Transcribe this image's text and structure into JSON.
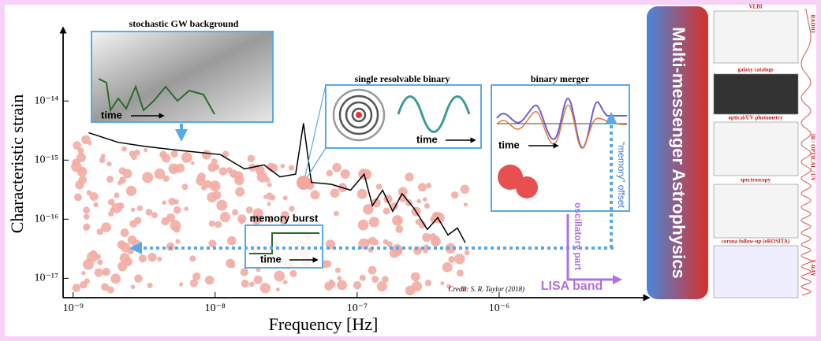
{
  "chart_data": {
    "type": "line",
    "x_label": "Frequency [Hz]",
    "y_label": "Characteristic strain",
    "xscale": "log",
    "yscale": "log",
    "xlim": [
      8.5e-10,
      1e-05
    ],
    "ylim": [
      4.7e-18,
      1.5e-13
    ],
    "xticks": [
      {
        "value": 1e-09,
        "label": "10⁻⁹"
      },
      {
        "value": 1e-08,
        "label": "10⁻⁸"
      },
      {
        "value": 1e-07,
        "label": "10⁻⁷"
      },
      {
        "value": 1e-06,
        "label": "10⁻⁶"
      }
    ],
    "yticks": [
      {
        "value": 1e-17,
        "label": "10⁻¹⁷"
      },
      {
        "value": 1e-16,
        "label": "10⁻¹⁶"
      },
      {
        "value": 1e-15,
        "label": "10⁻¹⁵"
      },
      {
        "value": 1e-14,
        "label": "10⁻¹⁴"
      }
    ],
    "series": [
      {
        "color": "#000000",
        "x": [
          1.29e-09,
          2.07e-09,
          3.24e-09,
          5.8e-09,
          1.09e-08,
          1.61e-08,
          2.21e-08,
          2.86e-08,
          3.69e-08,
          4.19e-08,
          4.76e-08,
          6.56e-08,
          9e-08,
          1.12e-07,
          1.28e-07,
          1.51e-07,
          1.78e-07,
          2.07e-07,
          2.51e-07,
          3.12e-07,
          3.69e-07,
          4.36e-07,
          5.08e-07,
          5.77e-07
        ],
        "values": [
          2.9e-15,
          2e-15,
          1.7e-15,
          1.45e-15,
          1.24e-15,
          7.1e-16,
          8.3e-16,
          5.2e-16,
          5.8e-16,
          4.2e-15,
          4.2e-16,
          3.9e-16,
          3.1e-16,
          5.8e-16,
          1.7e-16,
          3.1e-16,
          1.36e-16,
          2.7e-16,
          1.54e-16,
          6.7e-17,
          1.06e-16,
          5.4e-17,
          7.1e-17,
          4e-17
        ]
      }
    ],
    "credit": "Credit: S. R. Taylor (2018)",
    "annotations": {
      "stochastic": "stochastic GW background",
      "single_binary": "single resolvable binary",
      "merger": "binary merger",
      "memory_burst": "memory burst",
      "time": [
        "time",
        "time",
        "time",
        "time"
      ],
      "memory_offset": "“memory” offset",
      "oscillatory": "oscillatory part",
      "lisa": "LISA band"
    }
  },
  "side_panel": {
    "title": "Multi-messenger Astrophysics",
    "panels": [
      "VLBI",
      "galaxy catalogs",
      "optical/UV photometry",
      "spectroscopy",
      "corona follow-up (eROSITA)"
    ],
    "bands": [
      "RADIO",
      "IR / OPTICAL / UV",
      "X-RAY"
    ]
  }
}
